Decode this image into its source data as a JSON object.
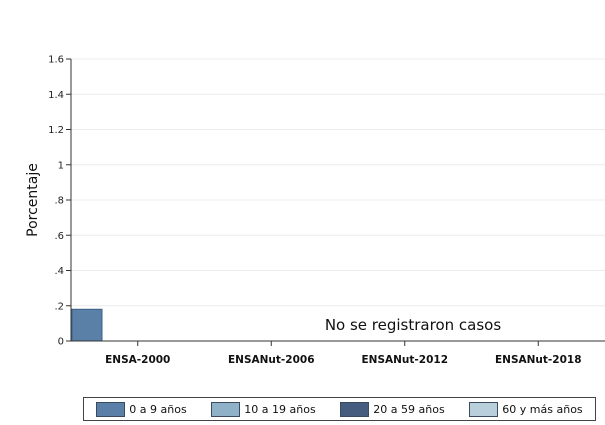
{
  "chart_data": {
    "type": "bar",
    "categories": [
      "ENSA-2000",
      "ENSANut-2006",
      "ENSANut-2012",
      "ENSANut-2018"
    ],
    "series": [
      {
        "name": "0 a 9 años",
        "values": [
          0.18,
          null,
          null,
          null
        ],
        "color": "#5b80a8"
      },
      {
        "name": "10 a 19 años",
        "values": [
          null,
          null,
          null,
          null
        ],
        "color": "#8fb2c9"
      },
      {
        "name": "20 a 59 años",
        "values": [
          null,
          null,
          null,
          null
        ],
        "color": "#475d7f"
      },
      {
        "name": "60 y más años",
        "values": [
          null,
          null,
          null,
          null
        ],
        "color": "#b9d0dc"
      }
    ],
    "ylabel": "Porcentaje",
    "ylim": [
      0,
      1.6
    ],
    "yticks": [
      0,
      0.2,
      0.4,
      0.6,
      0.8,
      1,
      1.2,
      1.4,
      1.6
    ],
    "ytick_labels": [
      "0",
      ".2",
      ".4",
      ".6",
      ".8",
      "1",
      "1.2",
      "1.4",
      "1.6"
    ],
    "grid": true,
    "legend_position": "bottom",
    "annotation": "No se registraron casos"
  }
}
